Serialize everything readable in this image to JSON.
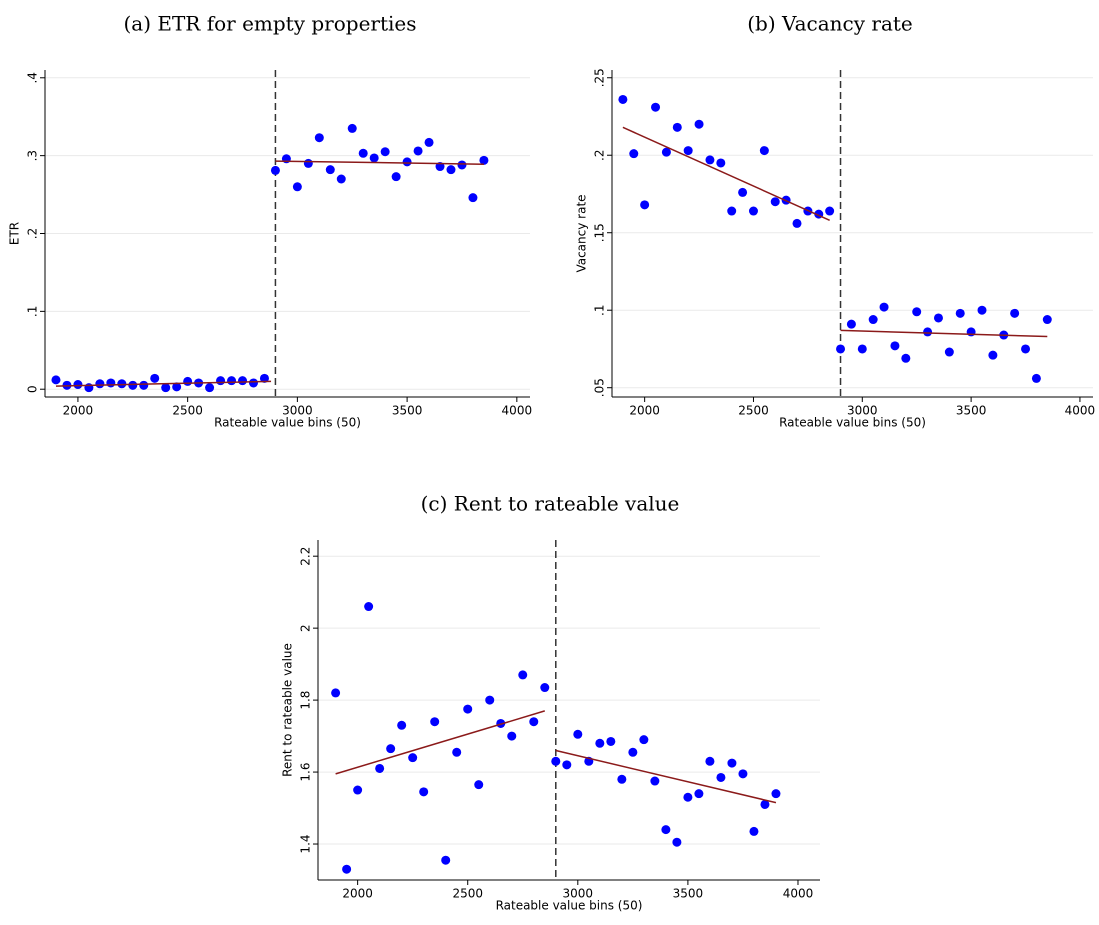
{
  "chart_data": [
    {
      "type": "scatter",
      "title": "(a) ETR for empty properties",
      "xlabel": "Rateable value bins (50)",
      "ylabel": "ETR",
      "xlim": [
        1850,
        4060
      ],
      "xticks": [
        2000,
        2500,
        3000,
        3500,
        4000
      ],
      "ylim": [
        -0.01,
        0.41
      ],
      "yticks": [
        0,
        {
          "value": 0.1,
          "label": ".1"
        },
        {
          "value": 0.2,
          "label": ".2"
        },
        {
          "value": 0.3,
          "label": ".3"
        },
        {
          "value": 0.4,
          "label": ".4"
        }
      ],
      "grid": true,
      "color": "#0000ff",
      "cutoff": 2900,
      "x": [
        1900,
        1950,
        2000,
        2050,
        2100,
        2150,
        2200,
        2250,
        2300,
        2350,
        2400,
        2450,
        2500,
        2550,
        2600,
        2650,
        2700,
        2750,
        2800,
        2850,
        2900,
        2950,
        3000,
        3050,
        3100,
        3150,
        3200,
        3250,
        3300,
        3350,
        3400,
        3450,
        3500,
        3550,
        3600,
        3650,
        3700,
        3750,
        3800,
        3850
      ],
      "values": [
        0.012,
        0.005,
        0.006,
        0.002,
        0.007,
        0.008,
        0.007,
        0.005,
        0.005,
        0.014,
        0.002,
        0.003,
        0.01,
        0.008,
        0.002,
        0.011,
        0.011,
        0.011,
        0.008,
        0.014,
        0.281,
        0.296,
        0.26,
        0.29,
        0.323,
        0.282,
        0.27,
        0.335,
        0.303,
        0.297,
        0.305,
        0.273,
        0.292,
        0.306,
        0.317,
        0.286,
        0.282,
        0.288,
        0.246,
        0.294
      ],
      "fit_lines": [
        {
          "x": [
            1900,
            2880
          ],
          "values": [
            0.004,
            0.01
          ],
          "color": "#8b1a1a"
        },
        {
          "x": [
            2900,
            3850
          ],
          "values": [
            0.293,
            0.289
          ],
          "color": "#8b1a1a"
        }
      ]
    },
    {
      "type": "scatter",
      "title": "(b) Vacancy rate",
      "xlabel": "Rateable value bins (50)",
      "ylabel": "Vacancy rate",
      "xlim": [
        1850,
        4060
      ],
      "xticks": [
        2000,
        2500,
        3000,
        3500,
        4000
      ],
      "ylim": [
        0.044,
        0.255
      ],
      "yticks": [
        {
          "value": 0.05,
          "label": ".05"
        },
        {
          "value": 0.1,
          "label": ".1"
        },
        {
          "value": 0.15,
          "label": ".15"
        },
        {
          "value": 0.2,
          "label": ".2"
        },
        {
          "value": 0.25,
          "label": ".25"
        }
      ],
      "grid": true,
      "color": "#0000ff",
      "cutoff": 2900,
      "x": [
        1900,
        1950,
        2000,
        2050,
        2100,
        2150,
        2200,
        2250,
        2300,
        2350,
        2400,
        2450,
        2500,
        2550,
        2600,
        2650,
        2700,
        2750,
        2800,
        2850,
        2900,
        2950,
        3000,
        3050,
        3100,
        3150,
        3200,
        3250,
        3300,
        3350,
        3400,
        3450,
        3500,
        3550,
        3600,
        3650,
        3700,
        3750,
        3800,
        3850
      ],
      "values": [
        0.236,
        0.201,
        0.168,
        0.231,
        0.202,
        0.218,
        0.203,
        0.22,
        0.197,
        0.195,
        0.164,
        0.176,
        0.164,
        0.203,
        0.17,
        0.171,
        0.156,
        0.164,
        0.162,
        0.164,
        0.075,
        0.091,
        0.075,
        0.094,
        0.102,
        0.077,
        0.069,
        0.099,
        0.086,
        0.095,
        0.073,
        0.098,
        0.086,
        0.1,
        0.071,
        0.084,
        0.098,
        0.075,
        0.056,
        0.094
      ],
      "fit_lines": [
        {
          "x": [
            1900,
            2850
          ],
          "values": [
            0.218,
            0.158
          ],
          "color": "#8b1a1a"
        },
        {
          "x": [
            2900,
            3850
          ],
          "values": [
            0.087,
            0.083
          ],
          "color": "#8b1a1a"
        }
      ]
    },
    {
      "type": "scatter",
      "title": "(c) Rent to rateable value",
      "xlabel": "Rateable value bins (50)",
      "ylabel": "Rent to rateable value",
      "xlim": [
        1820,
        4100
      ],
      "xticks": [
        2000,
        2500,
        3000,
        3500,
        4000
      ],
      "ylim": [
        1.3,
        2.245
      ],
      "yticks": [
        1.4,
        1.6,
        1.8,
        2,
        2.2
      ],
      "grid": true,
      "color": "#0000ff",
      "cutoff": 2900,
      "x": [
        1900,
        1950,
        2000,
        2050,
        2100,
        2150,
        2200,
        2250,
        2300,
        2350,
        2400,
        2450,
        2500,
        2550,
        2600,
        2650,
        2700,
        2750,
        2800,
        2850,
        2900,
        2950,
        3000,
        3050,
        3100,
        3150,
        3200,
        3250,
        3300,
        3350,
        3400,
        3450,
        3500,
        3550,
        3600,
        3650,
        3700,
        3750,
        3800,
        3850,
        3900
      ],
      "values": [
        1.82,
        1.33,
        1.55,
        2.06,
        1.61,
        1.665,
        1.73,
        1.64,
        1.545,
        1.74,
        1.355,
        1.655,
        1.775,
        1.565,
        1.8,
        1.735,
        1.7,
        1.87,
        1.74,
        1.835,
        1.63,
        1.62,
        1.705,
        1.63,
        1.68,
        1.685,
        1.58,
        1.655,
        1.69,
        1.575,
        1.44,
        1.405,
        1.53,
        1.54,
        1.63,
        1.585,
        1.625,
        1.595,
        1.435,
        1.51,
        1.54
      ],
      "fit_lines": [
        {
          "x": [
            1900,
            2850
          ],
          "values": [
            1.595,
            1.77
          ],
          "color": "#8b1a1a"
        },
        {
          "x": [
            2900,
            3900
          ],
          "values": [
            1.66,
            1.515
          ],
          "color": "#8b1a1a"
        }
      ]
    }
  ]
}
